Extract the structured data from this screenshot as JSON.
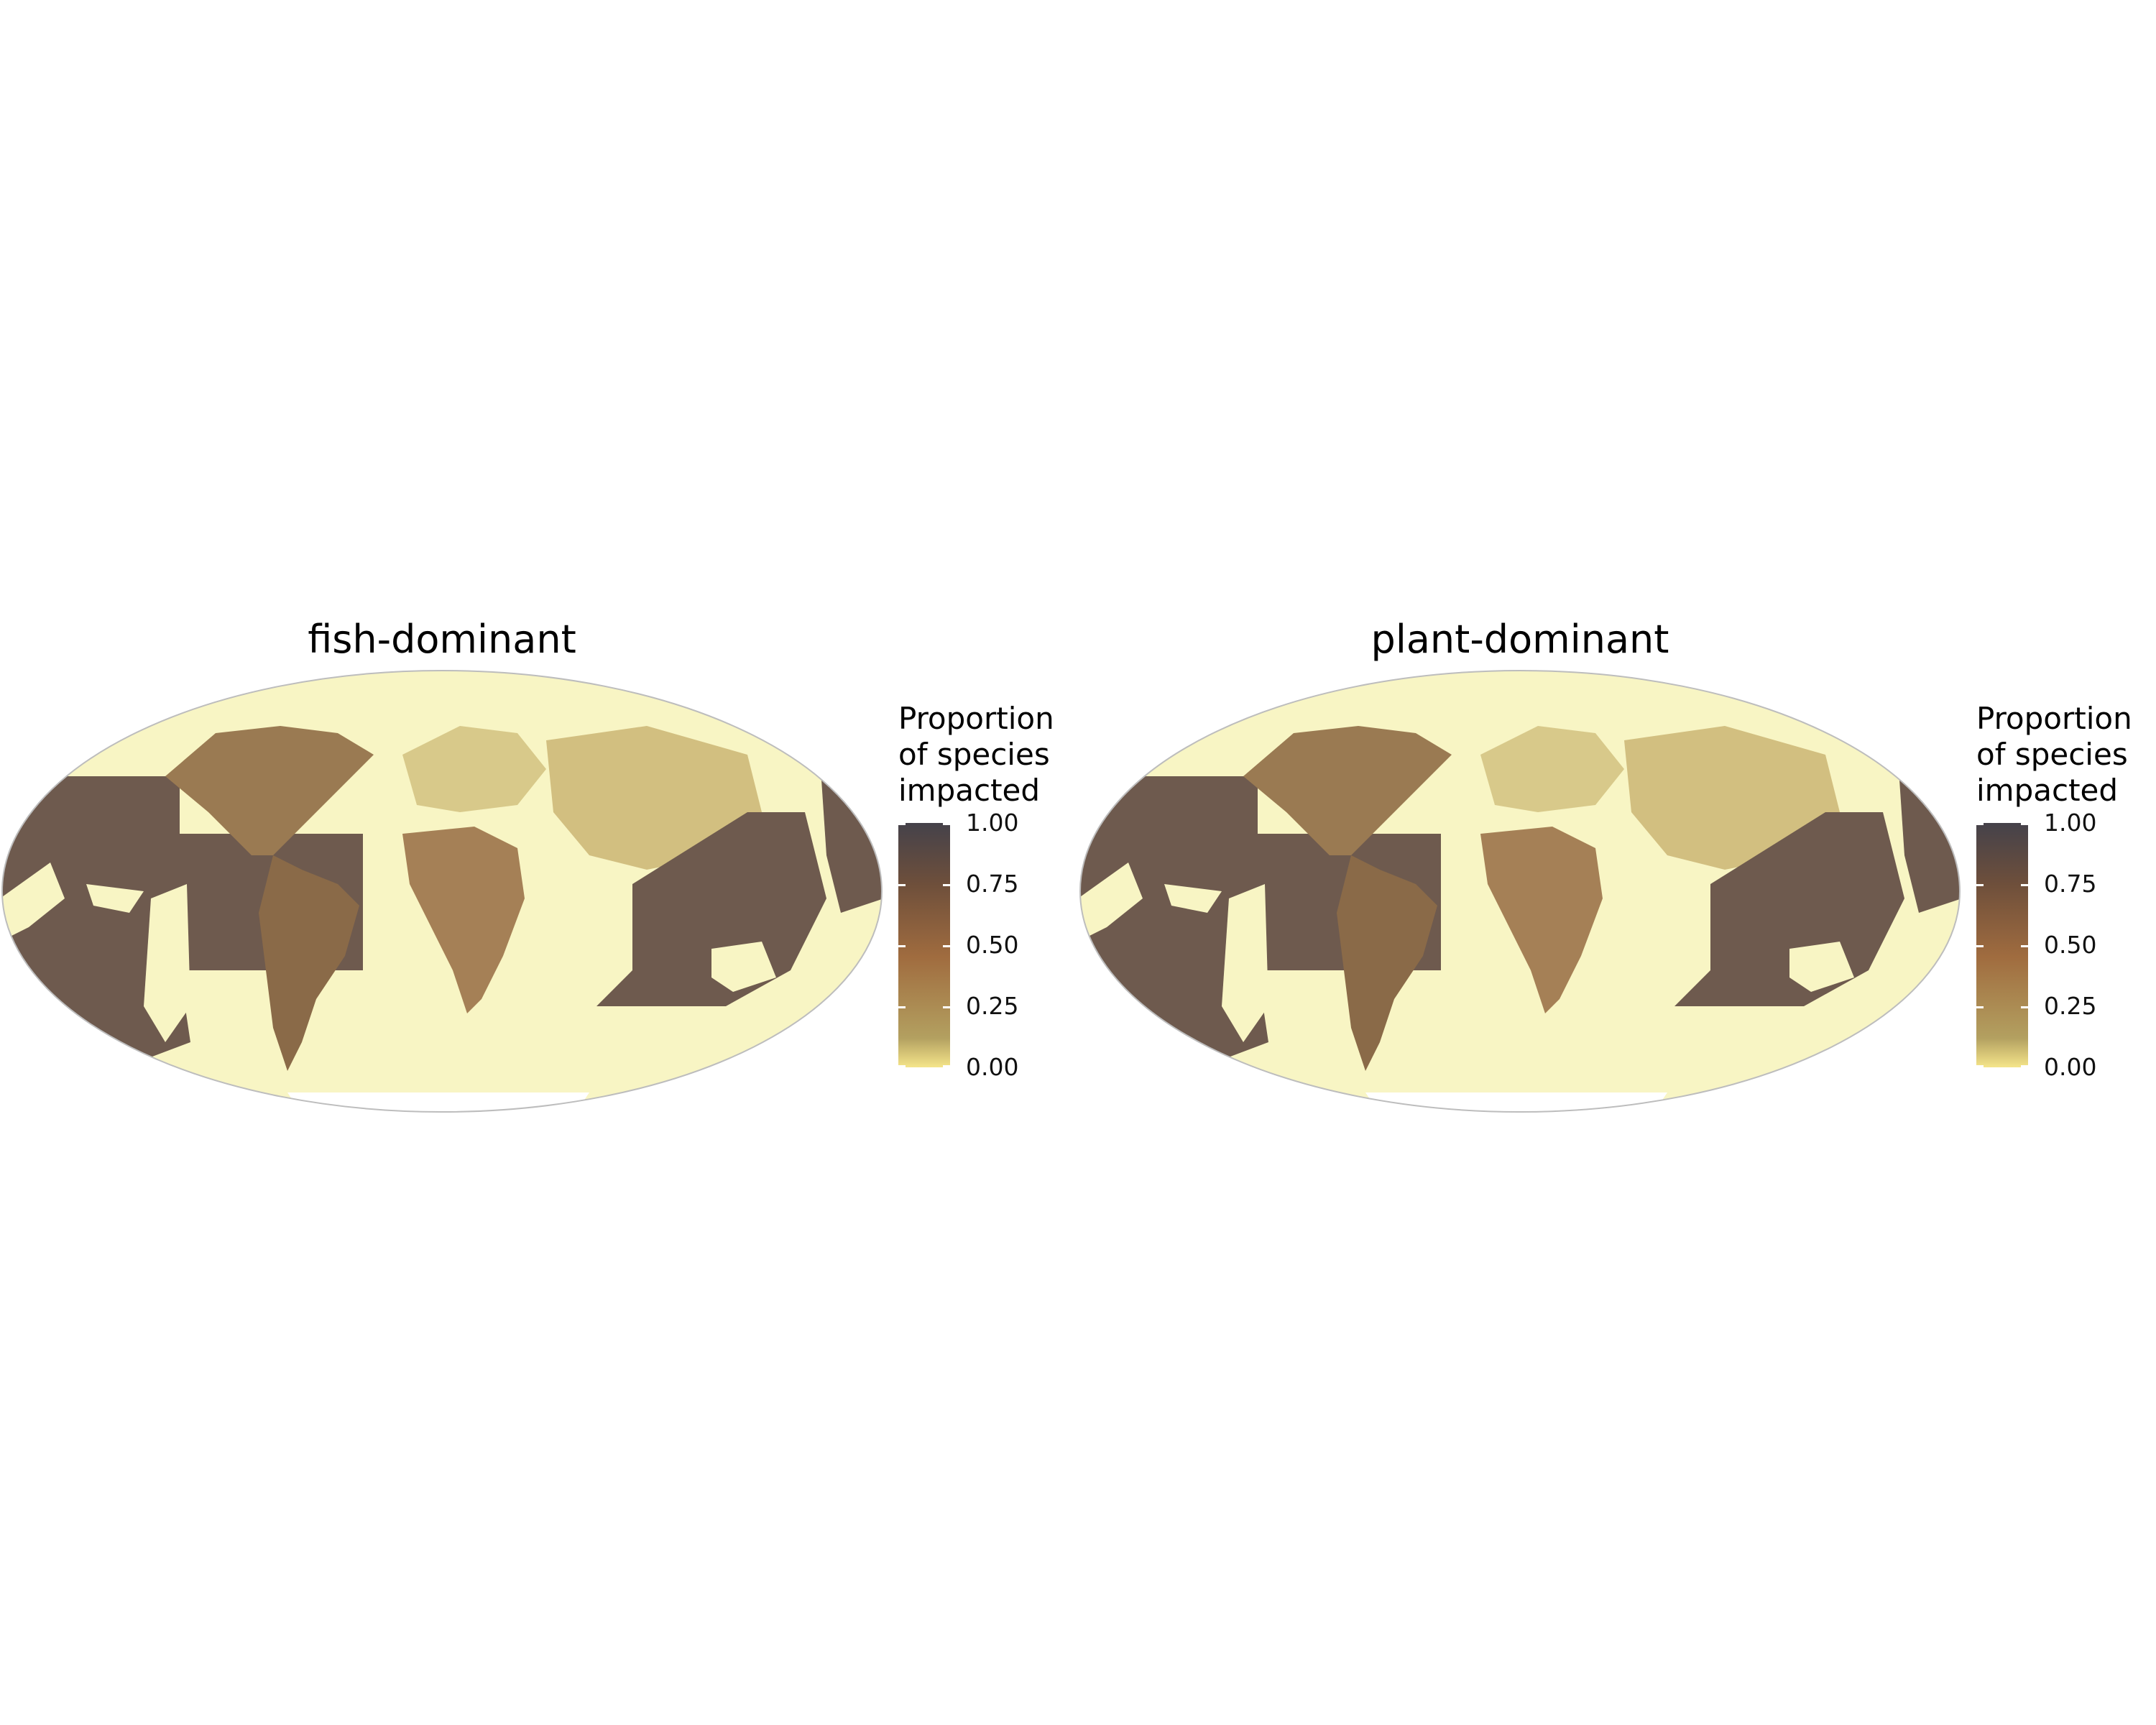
{
  "panels": [
    {
      "title": "fish-dominant"
    },
    {
      "title": "plant-dominant"
    }
  ],
  "legend": {
    "title_lines": [
      "Proportion",
      "of species",
      "impacted"
    ],
    "ticks": [
      "1.00",
      "0.75",
      "0.50",
      "0.25",
      "0.00"
    ],
    "range": [
      0,
      1
    ]
  },
  "colors": {
    "low": "#f5e58a",
    "mid_low": "#b3a060",
    "mid": "#a06c3f",
    "mid_high": "#6e4f3b",
    "high": "#45424a",
    "background_ocean": "#f8f5c4",
    "ice": "#ffffff",
    "borders": "#c8c8c8"
  }
}
